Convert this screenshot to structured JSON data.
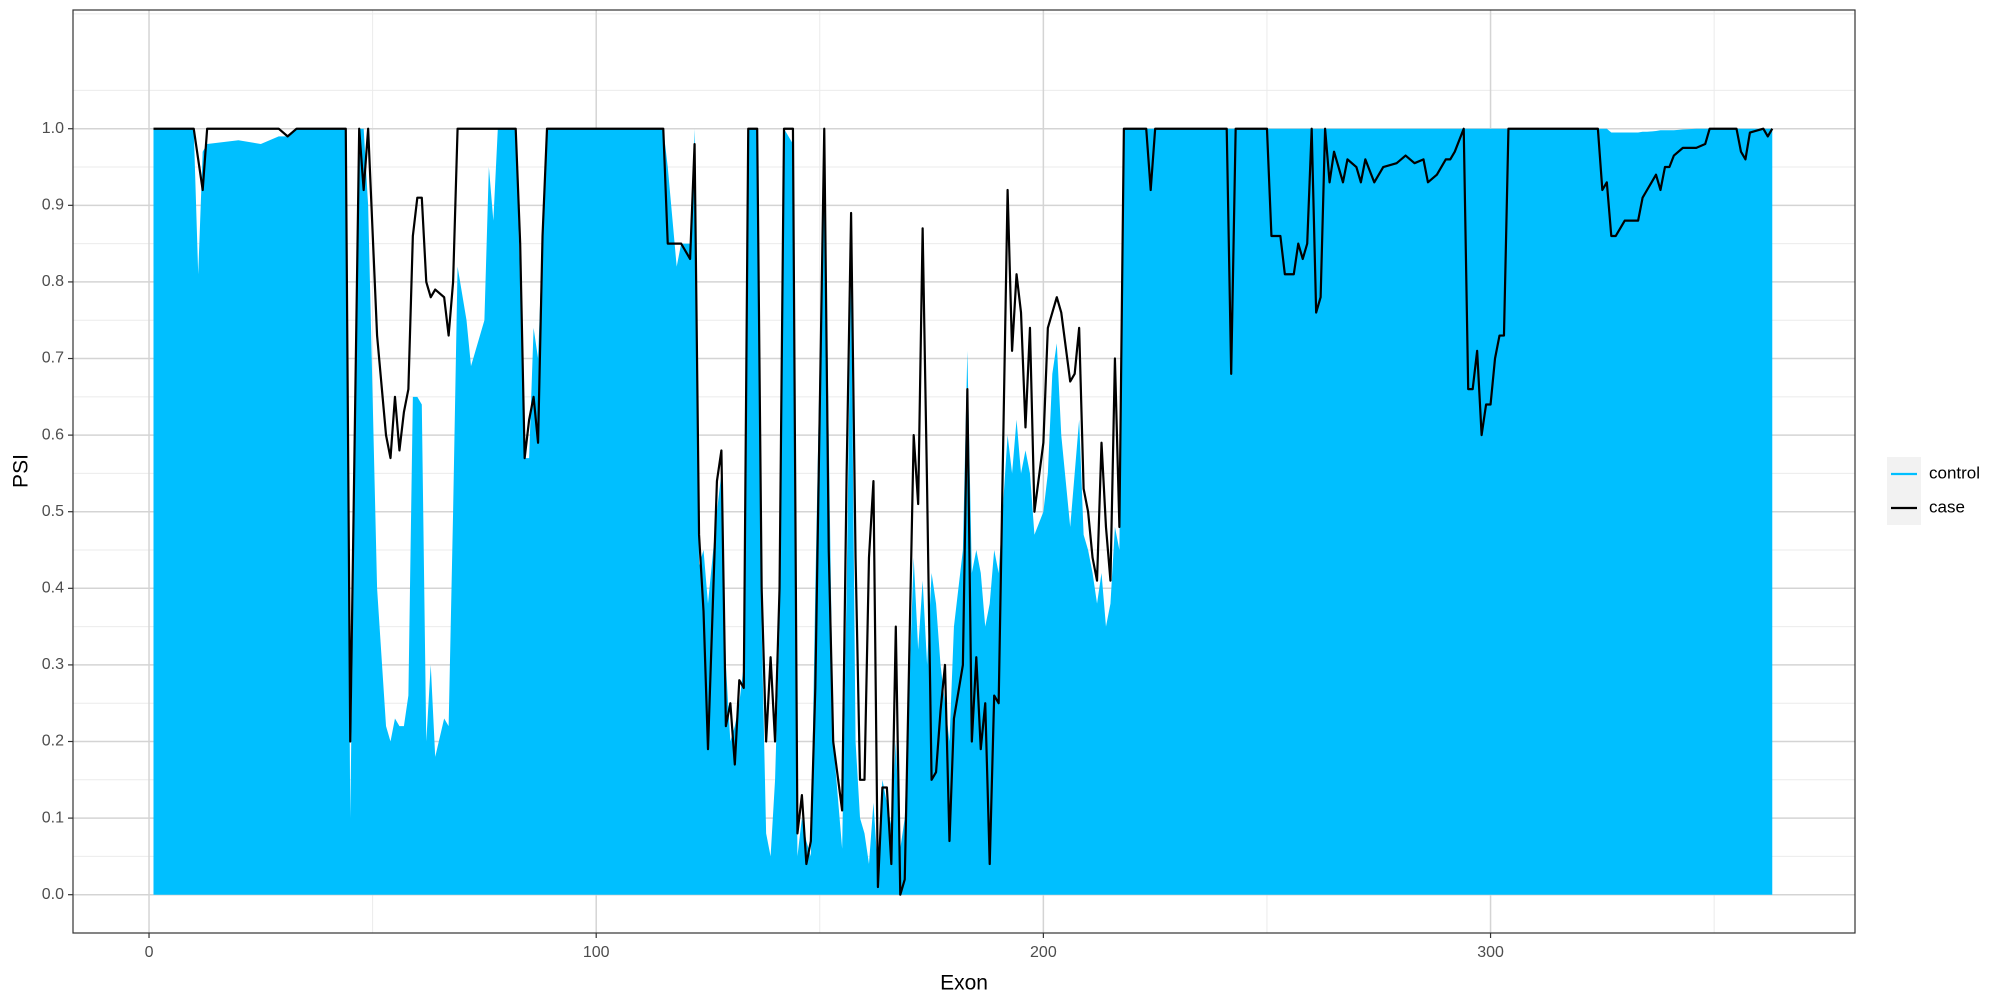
{
  "chart_data": {
    "type": "line",
    "x_label": "Exon",
    "y_label": "PSI",
    "xlim": [
      -17,
      381.5
    ],
    "ylim": [
      -0.05,
      1.155
    ],
    "xticks": [
      0,
      100,
      200,
      300
    ],
    "yticks": [
      {
        "value": 0,
        "label": "0.0"
      },
      0.1,
      0.2,
      0.3,
      0.4,
      0.5,
      0.6,
      0.7,
      0.8,
      0.9,
      {
        "value": 1,
        "label": "1.0"
      }
    ],
    "grid": true,
    "minor_grid": true,
    "legend": "right",
    "x": [
      1,
      10,
      11,
      12,
      13,
      20,
      25,
      29,
      31,
      33,
      44,
      45,
      47,
      48,
      49,
      51,
      53,
      54,
      55,
      56,
      57,
      58,
      59,
      60,
      61,
      62,
      63,
      64,
      66,
      67,
      68,
      69,
      71,
      72,
      73,
      75,
      76,
      77,
      78,
      82,
      83,
      84,
      85,
      86,
      87,
      88,
      89,
      115,
      116,
      118,
      119,
      121,
      122,
      123,
      124,
      125,
      127,
      128,
      129,
      130,
      131,
      132,
      133,
      134,
      136,
      137,
      138,
      139,
      140,
      141,
      142,
      144,
      145,
      146,
      147,
      148,
      149,
      151,
      152,
      153,
      155,
      156,
      157,
      158,
      159,
      160,
      161,
      162,
      163,
      164,
      165,
      166,
      167,
      168,
      169,
      171,
      172,
      173,
      174,
      175,
      176,
      177,
      178,
      179,
      180,
      182,
      183,
      184,
      185,
      186,
      187,
      188,
      189,
      190,
      192,
      193,
      194,
      195,
      196,
      197,
      198,
      200,
      201,
      202,
      203,
      204,
      206,
      207,
      208,
      209,
      210,
      211,
      212,
      213,
      214,
      215,
      216,
      217,
      218,
      223,
      224,
      225,
      241,
      242,
      243,
      250,
      251,
      253,
      254,
      256,
      257,
      258,
      259,
      260,
      261,
      262,
      263,
      264,
      265,
      267,
      268,
      270,
      271,
      272,
      274,
      276,
      279,
      281,
      283,
      285,
      286,
      288,
      290,
      291,
      292,
      294,
      295,
      296,
      297,
      298,
      299,
      300,
      301,
      302,
      303,
      304,
      324,
      325,
      326,
      327,
      328,
      330,
      331,
      333,
      334,
      335,
      337,
      338,
      339,
      340,
      341,
      343,
      346,
      348,
      349,
      355,
      356,
      357,
      358,
      361,
      362,
      363
    ],
    "series": [
      {
        "name": "control",
        "color": "#00BFFF",
        "kind": "area",
        "values": [
          1,
          1,
          0.81,
          0.97,
          0.98,
          0.985,
          0.98,
          0.99,
          0.99,
          1,
          1,
          0.1,
          1,
          1,
          0.9,
          0.4,
          0.22,
          0.2,
          0.23,
          0.22,
          0.22,
          0.26,
          0.65,
          0.65,
          0.64,
          0.2,
          0.3,
          0.18,
          0.23,
          0.22,
          0.5,
          0.82,
          0.75,
          0.69,
          0.71,
          0.75,
          0.95,
          0.88,
          1,
          1,
          0.8,
          0.57,
          0.57,
          0.74,
          0.7,
          0.86,
          1,
          1,
          0.95,
          0.82,
          0.85,
          0.85,
          1,
          0.43,
          0.45,
          0.38,
          0.5,
          0.55,
          0.3,
          0.2,
          0.22,
          0.25,
          0.3,
          1,
          1,
          0.35,
          0.08,
          0.05,
          0.15,
          0.35,
          1,
          0.98,
          0.05,
          0.1,
          0.07,
          0.05,
          0.4,
          1,
          0.6,
          0.2,
          0.06,
          0.4,
          0.82,
          0.2,
          0.1,
          0.08,
          0.04,
          0.12,
          0.03,
          0.15,
          0.12,
          0.09,
          0.2,
          0.06,
          0.1,
          0.44,
          0.32,
          0.41,
          0.3,
          0.42,
          0.38,
          0.3,
          0.25,
          0.2,
          0.35,
          0.45,
          0.71,
          0.42,
          0.45,
          0.42,
          0.35,
          0.38,
          0.45,
          0.42,
          0.6,
          0.55,
          0.62,
          0.55,
          0.58,
          0.55,
          0.47,
          0.5,
          0.55,
          0.68,
          0.72,
          0.6,
          0.48,
          0.55,
          0.62,
          0.47,
          0.45,
          0.42,
          0.38,
          0.42,
          0.35,
          0.38,
          0.48,
          0.45,
          1,
          1,
          1,
          1,
          1,
          1,
          1,
          1,
          1,
          1,
          1,
          1,
          1,
          1,
          1,
          1,
          1,
          1,
          1,
          1,
          1,
          1,
          1,
          1,
          1,
          1,
          1,
          1,
          1,
          1,
          1,
          1,
          1,
          1,
          1,
          1,
          1,
          1,
          1,
          1,
          1,
          1,
          1,
          1,
          1,
          1,
          1,
          1,
          1,
          1,
          1,
          0.995,
          0.995,
          0.995,
          0.995,
          0.995,
          0.996,
          0.996,
          0.997,
          0.998,
          0.998,
          0.998,
          0.998,
          0.999,
          1,
          1,
          1,
          1,
          1,
          1,
          1,
          1,
          1,
          1
        ]
      },
      {
        "name": "case",
        "color": "#000000",
        "kind": "line",
        "values": [
          1,
          1,
          0.96,
          0.92,
          1,
          1,
          1,
          1,
          0.99,
          1,
          1,
          0.2,
          1,
          0.92,
          1,
          0.73,
          0.6,
          0.57,
          0.65,
          0.58,
          0.63,
          0.66,
          0.86,
          0.91,
          0.91,
          0.8,
          0.78,
          0.79,
          0.78,
          0.73,
          0.8,
          1,
          1,
          1,
          1,
          1,
          1,
          1,
          1,
          1,
          0.85,
          0.57,
          0.62,
          0.65,
          0.59,
          0.86,
          1,
          1,
          0.85,
          0.85,
          0.85,
          0.83,
          0.98,
          0.47,
          0.37,
          0.19,
          0.54,
          0.58,
          0.22,
          0.25,
          0.17,
          0.28,
          0.27,
          1,
          1,
          0.4,
          0.2,
          0.31,
          0.2,
          0.4,
          1,
          1,
          0.08,
          0.13,
          0.04,
          0.07,
          0.27,
          1,
          0.45,
          0.2,
          0.11,
          0.55,
          0.89,
          0.44,
          0.15,
          0.15,
          0.44,
          0.54,
          0.01,
          0.14,
          0.14,
          0.04,
          0.35,
          0,
          0.02,
          0.6,
          0.51,
          0.87,
          0.53,
          0.15,
          0.16,
          0.24,
          0.3,
          0.07,
          0.23,
          0.3,
          0.66,
          0.2,
          0.31,
          0.19,
          0.25,
          0.04,
          0.26,
          0.25,
          0.92,
          0.71,
          0.81,
          0.76,
          0.61,
          0.74,
          0.5,
          0.59,
          0.74,
          0.76,
          0.78,
          0.76,
          0.67,
          0.68,
          0.74,
          0.53,
          0.5,
          0.44,
          0.41,
          0.59,
          0.48,
          0.41,
          0.7,
          0.48,
          1,
          1,
          0.92,
          1,
          1,
          0.68,
          1,
          1,
          0.86,
          0.86,
          0.81,
          0.81,
          0.85,
          0.83,
          0.85,
          1,
          0.76,
          0.78,
          1,
          0.93,
          0.97,
          0.93,
          0.96,
          0.95,
          0.93,
          0.96,
          0.93,
          0.95,
          0.955,
          0.965,
          0.955,
          0.96,
          0.93,
          0.94,
          0.96,
          0.96,
          0.97,
          1,
          0.66,
          0.66,
          0.71,
          0.6,
          0.64,
          0.64,
          0.7,
          0.73,
          0.73,
          1,
          1,
          0.92,
          0.93,
          0.86,
          0.86,
          0.88,
          0.88,
          0.88,
          0.91,
          0.92,
          0.94,
          0.92,
          0.95,
          0.95,
          0.965,
          0.975,
          0.975,
          0.98,
          1,
          1,
          0.97,
          0.96,
          0.995,
          1,
          0.99,
          1
        ]
      }
    ]
  }
}
